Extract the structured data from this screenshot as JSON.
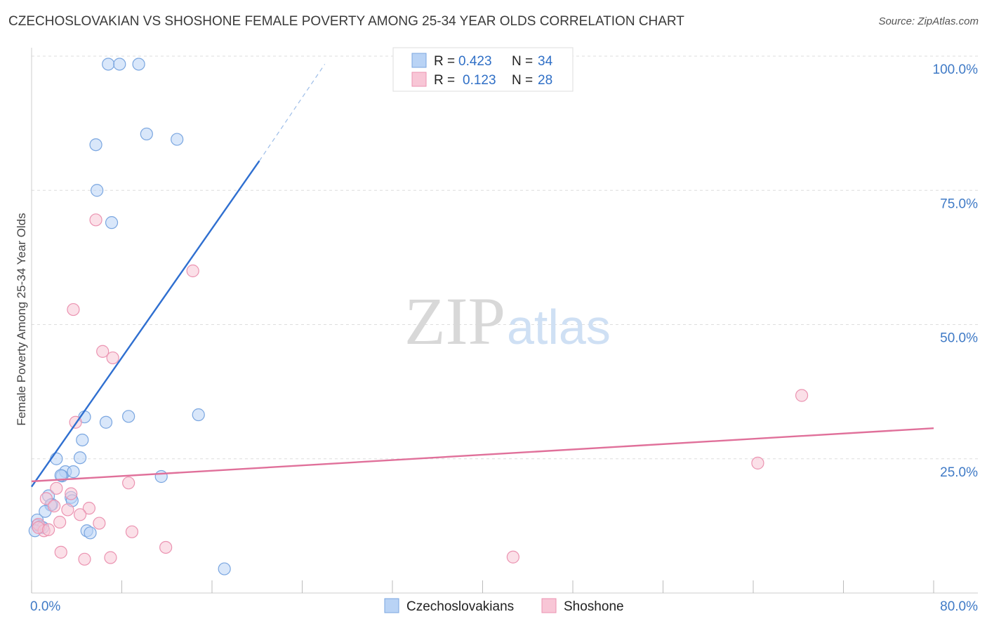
{
  "title": "CZECHOSLOVAKIAN VS SHOSHONE FEMALE POVERTY AMONG 25-34 YEAR OLDS CORRELATION CHART",
  "source": "Source: ZipAtlas.com",
  "watermark": {
    "zip": "ZIP",
    "atlas": "atlas"
  },
  "colors": {
    "blue_fill": "#b9d3f5",
    "blue_stroke": "#7aa6e0",
    "blue_line": "#2f6fd0",
    "pink_fill": "#f8c6d6",
    "pink_stroke": "#eb93b1",
    "pink_line": "#e0709a",
    "axis_text": "#3f7ac6",
    "grid": "#dddddd"
  },
  "legend": {
    "rows": [
      {
        "r_label": "R =",
        "r_value": "0.423",
        "n_label": "N =",
        "n_value": "34",
        "color": "blue"
      },
      {
        "r_label": "R =",
        "r_value": "0.123",
        "n_label": "N =",
        "n_value": "28",
        "color": "pink"
      }
    ]
  },
  "bottom_legend": [
    "Czechoslovakians",
    "Shoshone"
  ],
  "chart_data": {
    "type": "scatter",
    "xlabel": "",
    "ylabel": "Female Poverty Among 25-34 Year Olds",
    "xlim": [
      0,
      80
    ],
    "ylim": [
      0,
      100
    ],
    "x_tick_labels": [
      "0.0%",
      "80.0%"
    ],
    "y_tick_labels": [
      "25.0%",
      "50.0%",
      "75.0%",
      "100.0%"
    ],
    "y_ticks": [
      25,
      50,
      75,
      100
    ],
    "grid": true,
    "series": [
      {
        "name": "Czechoslovakians",
        "color": "blue",
        "points": [
          [
            6.8,
            98.5
          ],
          [
            7.8,
            98.5
          ],
          [
            9.5,
            98.5
          ],
          [
            10.2,
            85.5
          ],
          [
            12.9,
            84.5
          ],
          [
            5.7,
            83.5
          ],
          [
            5.8,
            75.0
          ],
          [
            7.1,
            69.0
          ],
          [
            4.7,
            32.8
          ],
          [
            6.6,
            31.8
          ],
          [
            8.6,
            32.9
          ],
          [
            14.8,
            33.2
          ],
          [
            4.5,
            28.5
          ],
          [
            4.3,
            25.2
          ],
          [
            2.2,
            25.0
          ],
          [
            3.0,
            22.6
          ],
          [
            3.7,
            22.6
          ],
          [
            2.7,
            21.8
          ],
          [
            2.6,
            21.9
          ],
          [
            11.5,
            21.7
          ],
          [
            1.5,
            18.1
          ],
          [
            3.5,
            17.8
          ],
          [
            3.6,
            17.2
          ],
          [
            1.8,
            16.5
          ],
          [
            1.7,
            16.4
          ],
          [
            1.2,
            15.2
          ],
          [
            0.5,
            13.6
          ],
          [
            0.5,
            12.6
          ],
          [
            0.8,
            12.4
          ],
          [
            1.0,
            12.2
          ],
          [
            0.3,
            11.6
          ],
          [
            4.9,
            11.6
          ],
          [
            5.2,
            11.2
          ],
          [
            17.1,
            4.5
          ]
        ],
        "trend": {
          "x0": 0.0,
          "y0": 19.8,
          "x1": 20.2,
          "y1": 80.5,
          "dash_to_x": 26.0,
          "dash_to_y": 98.5
        }
      },
      {
        "name": "Shoshone",
        "color": "pink",
        "points": [
          [
            5.7,
            69.5
          ],
          [
            14.3,
            60.0
          ],
          [
            3.7,
            52.8
          ],
          [
            6.3,
            45.0
          ],
          [
            7.2,
            43.8
          ],
          [
            68.3,
            36.8
          ],
          [
            3.9,
            31.8
          ],
          [
            64.4,
            24.2
          ],
          [
            8.6,
            20.5
          ],
          [
            2.2,
            19.5
          ],
          [
            3.5,
            18.5
          ],
          [
            1.3,
            17.6
          ],
          [
            2.0,
            16.2
          ],
          [
            5.1,
            15.8
          ],
          [
            3.2,
            15.5
          ],
          [
            4.3,
            14.6
          ],
          [
            2.5,
            13.2
          ],
          [
            6.0,
            13.0
          ],
          [
            0.6,
            12.8
          ],
          [
            1.1,
            11.6
          ],
          [
            0.6,
            12.2
          ],
          [
            8.9,
            11.4
          ],
          [
            1.5,
            11.8
          ],
          [
            11.9,
            8.5
          ],
          [
            2.6,
            7.6
          ],
          [
            7.0,
            6.6
          ],
          [
            4.7,
            6.3
          ],
          [
            42.7,
            6.7
          ]
        ],
        "trend": {
          "x0": 0.0,
          "y0": 20.8,
          "x1": 80.0,
          "y1": 30.7
        }
      }
    ]
  }
}
